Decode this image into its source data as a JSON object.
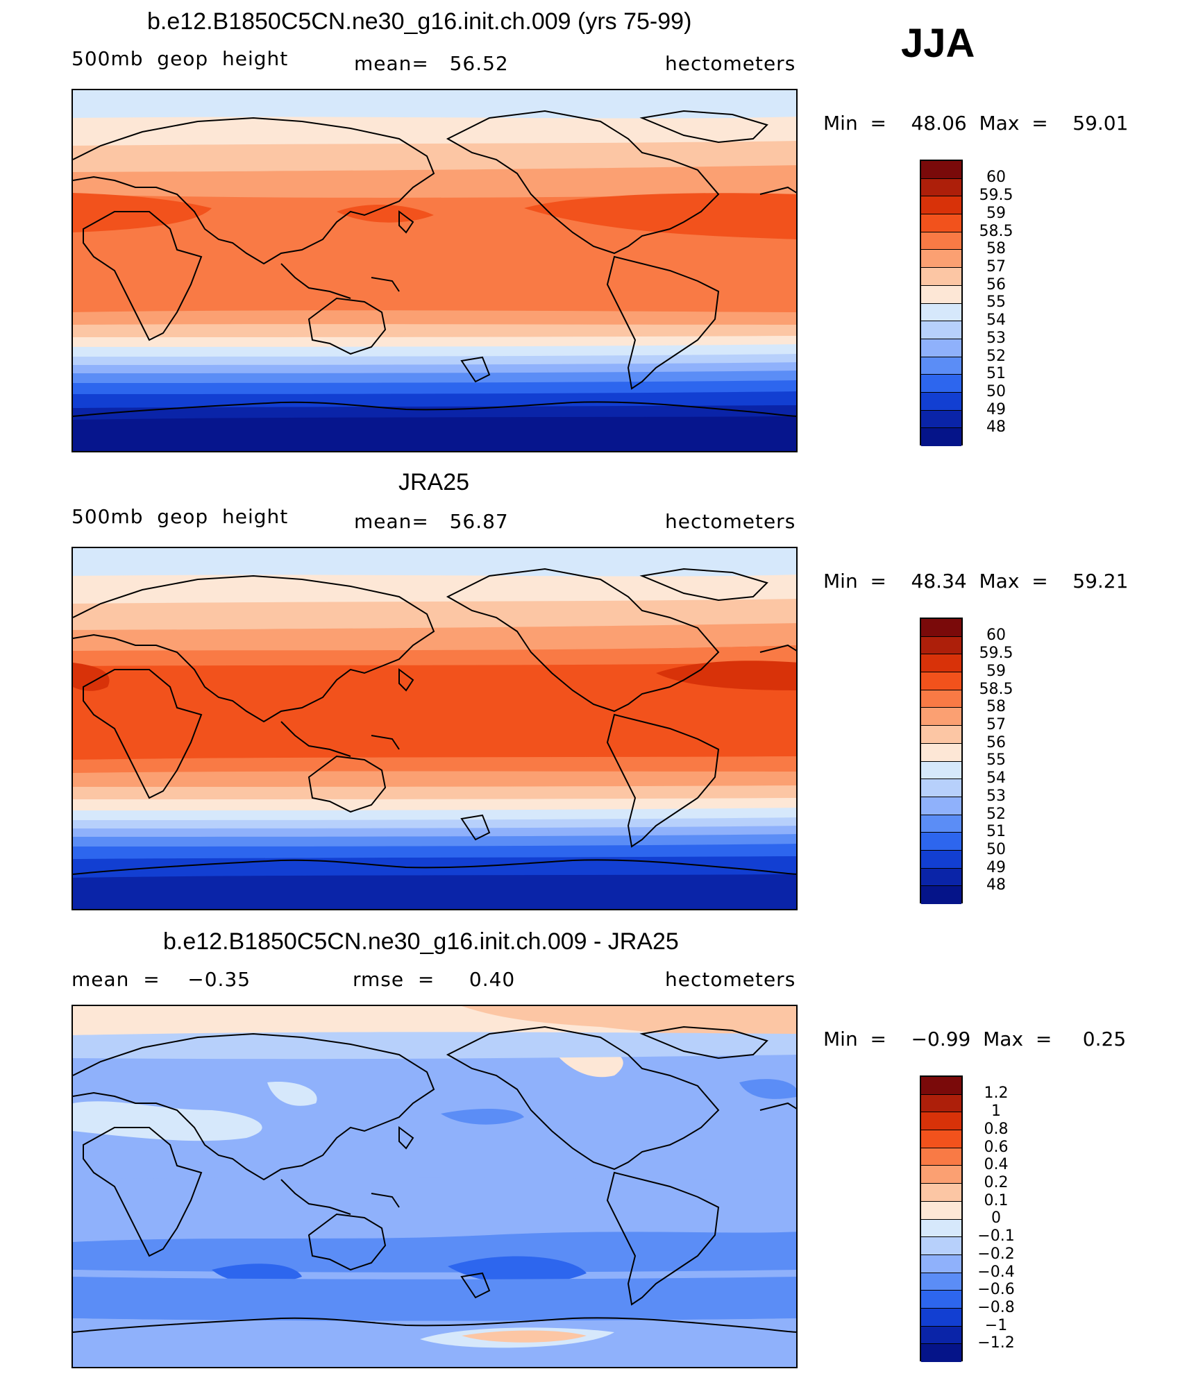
{
  "season": "JJA",
  "panels": [
    {
      "title": "b.e12.B1850C5CN.ne30_g16.init.ch.009 (yrs 75-99)",
      "left_label": "500mb  geop  height",
      "center_label": "mean=   56.52",
      "right_label": "hectometers",
      "minmax": "Min  =    48.06  Max  =    59.01",
      "levels": [
        "60",
        "59.5",
        "59",
        "58.5",
        "58",
        "57",
        "56",
        "55",
        "54",
        "53",
        "52",
        "51",
        "50",
        "49",
        "48"
      ]
    },
    {
      "title": "JRA25",
      "left_label": "500mb  geop  height",
      "center_label": "mean=   56.87",
      "right_label": "hectometers",
      "minmax": "Min  =    48.34  Max  =    59.21",
      "levels": [
        "60",
        "59.5",
        "59",
        "58.5",
        "58",
        "57",
        "56",
        "55",
        "54",
        "53",
        "52",
        "51",
        "50",
        "49",
        "48"
      ]
    },
    {
      "title": "b.e12.B1850C5CN.ne30_g16.init.ch.009 - JRA25",
      "left_label": "mean  =    −0.35",
      "center_label": "rmse  =     0.40",
      "right_label": "hectometers",
      "minmax": "Min  =    −0.99  Max  =     0.25",
      "levels": [
        "1.2",
        "1",
        "0.8",
        "0.6",
        "0.4",
        "0.2",
        "0.1",
        "0",
        "−0.1",
        "−0.2",
        "−0.4",
        "−0.6",
        "−0.8",
        "−1",
        "−1.2"
      ]
    }
  ],
  "colors": {
    "palette": [
      "#7a0a0a",
      "#ad1f0a",
      "#d83209",
      "#f2521c",
      "#f97a45",
      "#fba072",
      "#fcc6a4",
      "#fde7d6",
      "#d6e8fb",
      "#b7d0fb",
      "#8fb1fb",
      "#5b8df6",
      "#2d66ee",
      "#123fd2",
      "#0a24a8",
      "#051489"
    ],
    "land_outline": "#000000"
  }
}
